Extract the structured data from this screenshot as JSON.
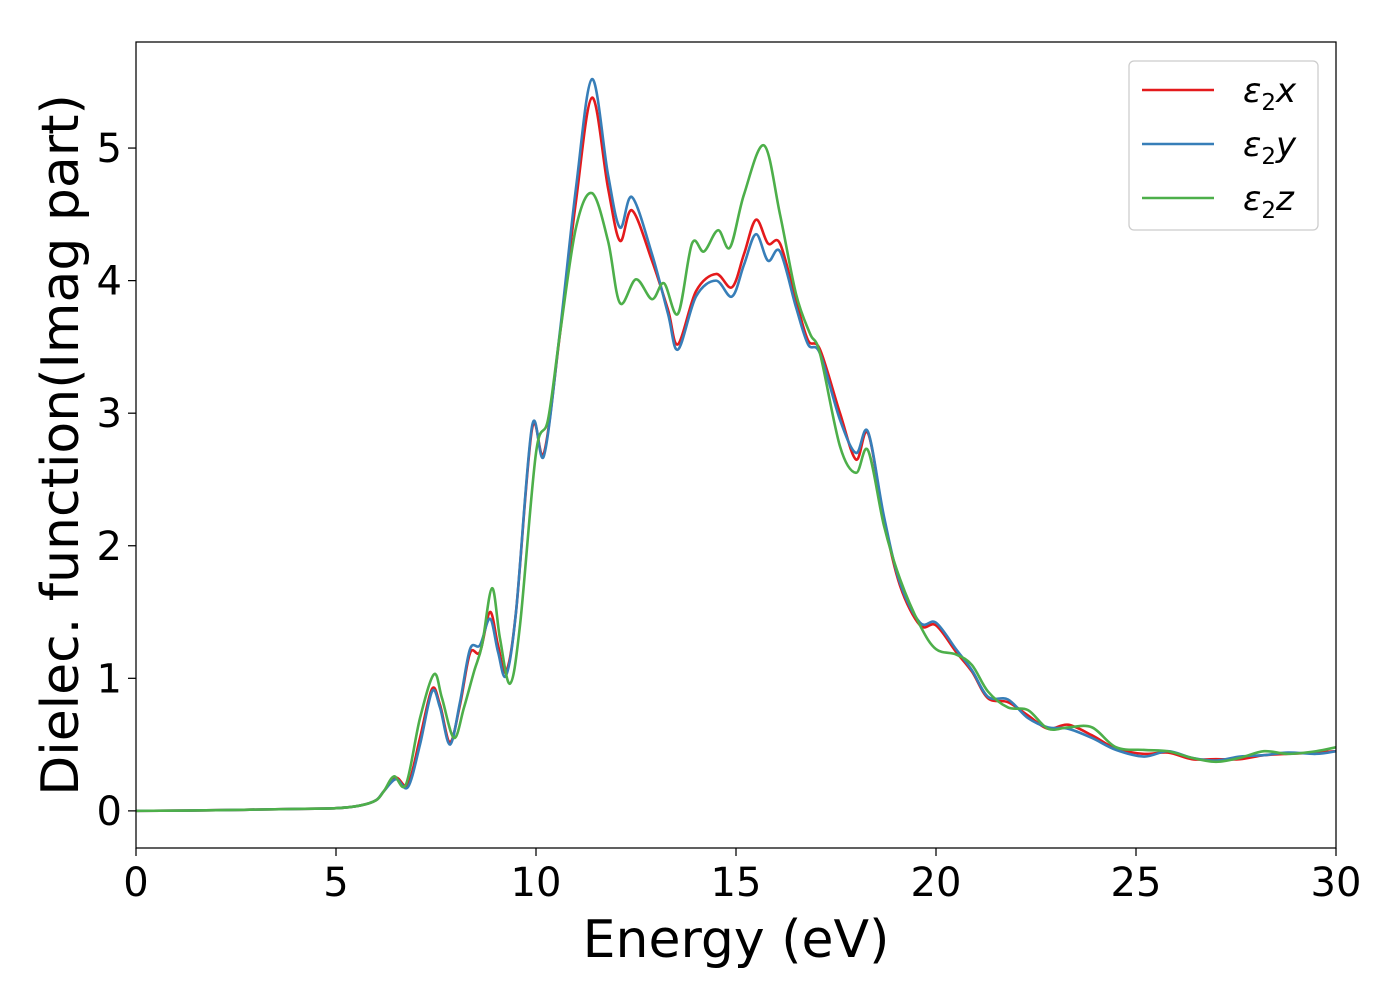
{
  "chart_data": {
    "type": "line",
    "title": "",
    "xlabel": "Energy (eV)",
    "ylabel": "Dielec. function(Imag part)",
    "xlim": [
      0,
      30
    ],
    "ylim": [
      -0.28,
      5.8
    ],
    "xticks": [
      0,
      5,
      10,
      15,
      20,
      25,
      30
    ],
    "yticks": [
      0,
      1,
      2,
      3,
      4,
      5
    ],
    "grid": false,
    "legend_position": "top-right",
    "series": [
      {
        "name": "ε₂x",
        "name_base": "ε",
        "name_sub": "2",
        "name_var": "x",
        "color": "#e41a1c",
        "points": [
          [
            0.0,
            0.0
          ],
          [
            2.0,
            0.005
          ],
          [
            4.0,
            0.015
          ],
          [
            5.0,
            0.02
          ],
          [
            5.6,
            0.04
          ],
          [
            6.0,
            0.08
          ],
          [
            6.2,
            0.15
          ],
          [
            6.5,
            0.25
          ],
          [
            6.8,
            0.2
          ],
          [
            7.1,
            0.55
          ],
          [
            7.4,
            0.92
          ],
          [
            7.6,
            0.8
          ],
          [
            7.85,
            0.52
          ],
          [
            8.1,
            0.8
          ],
          [
            8.35,
            1.19
          ],
          [
            8.6,
            1.2
          ],
          [
            8.85,
            1.5
          ],
          [
            9.05,
            1.25
          ],
          [
            9.25,
            1.05
          ],
          [
            9.5,
            1.5
          ],
          [
            9.9,
            2.88
          ],
          [
            10.2,
            2.7
          ],
          [
            10.6,
            3.6
          ],
          [
            11.0,
            4.6
          ],
          [
            11.4,
            5.38
          ],
          [
            11.8,
            4.7
          ],
          [
            12.1,
            4.3
          ],
          [
            12.4,
            4.53
          ],
          [
            12.9,
            4.15
          ],
          [
            13.3,
            3.78
          ],
          [
            13.55,
            3.52
          ],
          [
            14.0,
            3.92
          ],
          [
            14.5,
            4.05
          ],
          [
            14.9,
            3.95
          ],
          [
            15.2,
            4.2
          ],
          [
            15.5,
            4.46
          ],
          [
            15.8,
            4.28
          ],
          [
            16.1,
            4.28
          ],
          [
            16.5,
            3.85
          ],
          [
            16.8,
            3.55
          ],
          [
            17.1,
            3.48
          ],
          [
            17.6,
            3.0
          ],
          [
            18.0,
            2.65
          ],
          [
            18.3,
            2.85
          ],
          [
            18.7,
            2.2
          ],
          [
            19.1,
            1.7
          ],
          [
            19.6,
            1.4
          ],
          [
            20.0,
            1.4
          ],
          [
            20.5,
            1.2
          ],
          [
            20.9,
            1.05
          ],
          [
            21.3,
            0.85
          ],
          [
            21.8,
            0.82
          ],
          [
            22.3,
            0.72
          ],
          [
            22.8,
            0.62
          ],
          [
            23.3,
            0.65
          ],
          [
            23.9,
            0.57
          ],
          [
            24.5,
            0.47
          ],
          [
            25.2,
            0.43
          ],
          [
            25.8,
            0.44
          ],
          [
            26.4,
            0.39
          ],
          [
            27.0,
            0.39
          ],
          [
            27.6,
            0.39
          ],
          [
            28.2,
            0.42
          ],
          [
            28.8,
            0.43
          ],
          [
            29.5,
            0.44
          ],
          [
            30.0,
            0.45
          ]
        ]
      },
      {
        "name": "ε₂y",
        "name_base": "ε",
        "name_sub": "2",
        "name_var": "y",
        "color": "#377eb8",
        "points": [
          [
            0.0,
            0.0
          ],
          [
            2.0,
            0.005
          ],
          [
            4.0,
            0.015
          ],
          [
            5.0,
            0.02
          ],
          [
            5.6,
            0.04
          ],
          [
            6.0,
            0.08
          ],
          [
            6.2,
            0.15
          ],
          [
            6.5,
            0.24
          ],
          [
            6.8,
            0.18
          ],
          [
            7.1,
            0.5
          ],
          [
            7.4,
            0.9
          ],
          [
            7.6,
            0.78
          ],
          [
            7.85,
            0.5
          ],
          [
            8.1,
            0.82
          ],
          [
            8.35,
            1.22
          ],
          [
            8.6,
            1.25
          ],
          [
            8.85,
            1.45
          ],
          [
            9.05,
            1.2
          ],
          [
            9.25,
            1.02
          ],
          [
            9.5,
            1.5
          ],
          [
            9.9,
            2.9
          ],
          [
            10.2,
            2.68
          ],
          [
            10.6,
            3.62
          ],
          [
            11.0,
            4.7
          ],
          [
            11.4,
            5.52
          ],
          [
            11.8,
            4.8
          ],
          [
            12.1,
            4.4
          ],
          [
            12.4,
            4.63
          ],
          [
            12.9,
            4.2
          ],
          [
            13.3,
            3.75
          ],
          [
            13.55,
            3.48
          ],
          [
            14.0,
            3.88
          ],
          [
            14.5,
            4.0
          ],
          [
            14.9,
            3.88
          ],
          [
            15.2,
            4.12
          ],
          [
            15.5,
            4.35
          ],
          [
            15.8,
            4.15
          ],
          [
            16.1,
            4.22
          ],
          [
            16.5,
            3.8
          ],
          [
            16.8,
            3.52
          ],
          [
            17.1,
            3.45
          ],
          [
            17.6,
            2.95
          ],
          [
            18.0,
            2.7
          ],
          [
            18.3,
            2.86
          ],
          [
            18.7,
            2.22
          ],
          [
            19.1,
            1.72
          ],
          [
            19.6,
            1.42
          ],
          [
            20.0,
            1.42
          ],
          [
            20.5,
            1.22
          ],
          [
            20.9,
            1.06
          ],
          [
            21.3,
            0.86
          ],
          [
            21.8,
            0.84
          ],
          [
            22.3,
            0.7
          ],
          [
            22.8,
            0.63
          ],
          [
            23.3,
            0.62
          ],
          [
            23.9,
            0.55
          ],
          [
            24.5,
            0.46
          ],
          [
            25.2,
            0.41
          ],
          [
            25.8,
            0.45
          ],
          [
            26.4,
            0.4
          ],
          [
            27.0,
            0.38
          ],
          [
            27.6,
            0.41
          ],
          [
            28.2,
            0.42
          ],
          [
            28.8,
            0.44
          ],
          [
            29.5,
            0.43
          ],
          [
            30.0,
            0.45
          ]
        ]
      },
      {
        "name": "ε₂z",
        "name_base": "ε",
        "name_sub": "2",
        "name_var": "z",
        "color": "#4daf4a",
        "points": [
          [
            0.0,
            0.0
          ],
          [
            2.0,
            0.005
          ],
          [
            4.0,
            0.015
          ],
          [
            5.0,
            0.02
          ],
          [
            5.6,
            0.04
          ],
          [
            6.0,
            0.08
          ],
          [
            6.2,
            0.15
          ],
          [
            6.45,
            0.26
          ],
          [
            6.75,
            0.2
          ],
          [
            7.1,
            0.7
          ],
          [
            7.45,
            1.03
          ],
          [
            7.65,
            0.85
          ],
          [
            7.95,
            0.55
          ],
          [
            8.2,
            0.78
          ],
          [
            8.45,
            1.05
          ],
          [
            8.65,
            1.25
          ],
          [
            8.9,
            1.68
          ],
          [
            9.1,
            1.3
          ],
          [
            9.35,
            0.96
          ],
          [
            9.6,
            1.4
          ],
          [
            10.0,
            2.7
          ],
          [
            10.3,
            2.95
          ],
          [
            10.6,
            3.6
          ],
          [
            11.0,
            4.4
          ],
          [
            11.4,
            4.66
          ],
          [
            11.8,
            4.3
          ],
          [
            12.1,
            3.83
          ],
          [
            12.5,
            4.01
          ],
          [
            12.9,
            3.86
          ],
          [
            13.2,
            3.98
          ],
          [
            13.55,
            3.75
          ],
          [
            13.9,
            4.28
          ],
          [
            14.2,
            4.22
          ],
          [
            14.55,
            4.38
          ],
          [
            14.85,
            4.25
          ],
          [
            15.2,
            4.65
          ],
          [
            15.7,
            5.02
          ],
          [
            16.1,
            4.5
          ],
          [
            16.5,
            3.9
          ],
          [
            16.85,
            3.6
          ],
          [
            17.1,
            3.45
          ],
          [
            17.6,
            2.75
          ],
          [
            18.0,
            2.55
          ],
          [
            18.3,
            2.72
          ],
          [
            18.7,
            2.15
          ],
          [
            19.1,
            1.75
          ],
          [
            19.6,
            1.4
          ],
          [
            20.0,
            1.22
          ],
          [
            20.5,
            1.18
          ],
          [
            20.9,
            1.1
          ],
          [
            21.3,
            0.9
          ],
          [
            21.8,
            0.78
          ],
          [
            22.3,
            0.76
          ],
          [
            22.8,
            0.62
          ],
          [
            23.3,
            0.63
          ],
          [
            23.9,
            0.63
          ],
          [
            24.5,
            0.48
          ],
          [
            25.2,
            0.46
          ],
          [
            25.8,
            0.45
          ],
          [
            26.4,
            0.4
          ],
          [
            27.0,
            0.37
          ],
          [
            27.6,
            0.4
          ],
          [
            28.2,
            0.45
          ],
          [
            28.8,
            0.43
          ],
          [
            29.5,
            0.45
          ],
          [
            30.0,
            0.48
          ]
        ]
      }
    ]
  }
}
